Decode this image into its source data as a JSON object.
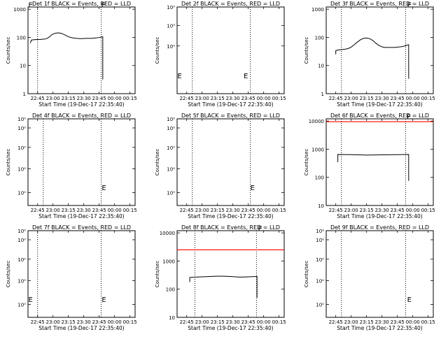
{
  "x_ticks": [
    "22:45",
    "23:00",
    "23:15",
    "23:30",
    "23:45",
    "00:00",
    "00:15"
  ],
  "xlabel": "Start Time (19-Dec-17 22:35:40)",
  "ylabel": "Counts/sec",
  "colors": {
    "events": "#000000",
    "lld": "#ff0000",
    "dotted": "#000000",
    "background": "#ffffff"
  },
  "chart_data": [
    {
      "type": "line",
      "title": "Det 1f BLACK = Events, RED = LLD",
      "x_range": [
        "22:35:40",
        "00:20:00"
      ],
      "ylim": [
        1,
        1200
      ],
      "yscale": "log",
      "ytick_labels": [
        "1",
        "10",
        "100",
        "1000"
      ],
      "ytick_values": [
        1,
        10,
        100,
        1000
      ],
      "vlines": [
        "22:45:00",
        "23:47:00"
      ],
      "markers": [
        {
          "text": "E",
          "x": "22:36:00",
          "y": 1150
        },
        {
          "text": "E",
          "x": "23:47:00",
          "y": 1150
        }
      ],
      "events": {
        "x": [
          "22:38:00",
          "22:39:00",
          "22:41:00",
          "22:44:00",
          "22:47:00",
          "22:50:00",
          "22:53:00",
          "22:56:00",
          "22:59:00",
          "23:02:00",
          "23:05:00",
          "23:08:00",
          "23:11:00",
          "23:14:00",
          "23:17:00",
          "23:20:00",
          "23:23:00",
          "23:26:00",
          "23:29:00",
          "23:32:00",
          "23:35:00",
          "23:38:00",
          "23:41:00",
          "23:44:00",
          "23:46:00",
          "23:48:00",
          "23:48:30",
          "23:48:31"
        ],
        "y": [
          63,
          80,
          82,
          84,
          84,
          86,
          88,
          100,
          125,
          140,
          145,
          140,
          125,
          110,
          100,
          95,
          92,
          90,
          90,
          92,
          92,
          92,
          95,
          98,
          100,
          105,
          105,
          3.2
        ]
      },
      "lld": null
    },
    {
      "type": "line",
      "title": "Det 2f BLACK = Events, RED = LLD",
      "x_range": [
        "22:35:40",
        "00:20:00"
      ],
      "ylim": [
        0.8,
        1.2
      ],
      "yscale": "log",
      "ytick_labels": [
        "10⁰",
        "10⁰",
        "10⁰"
      ],
      "ytick_values": [
        1.0,
        1.1,
        1.2
      ],
      "vlines": [
        "22:50:30",
        "23:47:00"
      ],
      "markers": [
        {
          "text": "E",
          "x": "22:36:00",
          "y": 0.86
        },
        {
          "text": "E",
          "x": "23:40:30",
          "y": 0.86
        }
      ],
      "events": null,
      "lld": null
    },
    {
      "type": "line",
      "title": "Det 3f BLACK = Events, RED = LLD",
      "x_range": [
        "22:35:40",
        "00:20:00"
      ],
      "ylim": [
        1,
        1200
      ],
      "yscale": "log",
      "ytick_labels": [
        "1",
        "10",
        "100",
        "1000"
      ],
      "ytick_values": [
        1,
        10,
        100,
        1000
      ],
      "vlines": [
        "22:50:30",
        "23:53:00"
      ],
      "markers": [
        {
          "text": "E",
          "x": "23:54:30",
          "y": 1150
        }
      ],
      "events": {
        "x": [
          "22:45:00",
          "22:45:01",
          "22:48:00",
          "22:51:00",
          "22:54:00",
          "22:57:00",
          "23:00:00",
          "23:03:00",
          "23:06:00",
          "23:09:00",
          "23:12:00",
          "23:15:00",
          "23:18:00",
          "23:21:00",
          "23:24:00",
          "23:27:00",
          "23:30:00",
          "23:33:00",
          "23:36:00",
          "23:39:00",
          "23:42:00",
          "23:45:00",
          "23:48:00",
          "23:51:00",
          "23:54:00",
          "23:56:00",
          "23:56:01"
        ],
        "y": [
          25,
          34,
          36,
          37,
          38,
          40,
          45,
          55,
          68,
          82,
          92,
          95,
          90,
          78,
          62,
          52,
          46,
          44,
          44,
          44,
          44,
          45,
          46,
          48,
          52,
          55,
          3.4
        ]
      },
      "lld": null
    },
    {
      "type": "line",
      "title": "Det 4f BLACK = Events, RED = LLD",
      "x_range": [
        "22:35:40",
        "00:20:00"
      ],
      "ylim": [
        0.8,
        1.2
      ],
      "yscale": "log",
      "ytick_labels": [
        "10⁰",
        "10⁰",
        "10⁰",
        "10⁰",
        "10⁰"
      ],
      "ytick_values": [
        0.85,
        0.95,
        1.05,
        1.15,
        1.2
      ],
      "vlines": [
        "22:50:30",
        "23:47:00"
      ],
      "markers": [
        {
          "text": "E",
          "x": "23:47:30",
          "y": 0.86
        }
      ],
      "events": null,
      "lld": null
    },
    {
      "type": "line",
      "title": "Det 5f BLACK = Events, RED = LLD",
      "x_range": [
        "22:35:40",
        "00:20:00"
      ],
      "ylim": [
        0.8,
        1.2
      ],
      "yscale": "log",
      "ytick_labels": [
        "10⁰",
        "10⁰",
        "10⁰",
        "10⁰",
        "10⁰"
      ],
      "ytick_values": [
        0.85,
        0.95,
        1.05,
        1.15,
        1.2
      ],
      "vlines": [
        "22:50:30",
        "23:47:00"
      ],
      "markers": [
        {
          "text": "E",
          "x": "23:47:00",
          "y": 0.86
        }
      ],
      "events": null,
      "lld": null
    },
    {
      "type": "line",
      "title": "Det 6f BLACK = Events, RED = LLD",
      "x_range": [
        "22:35:40",
        "00:20:00"
      ],
      "ylim": [
        10,
        12000
      ],
      "yscale": "log",
      "ytick_labels": [
        "10",
        "100",
        "1000",
        "10000"
      ],
      "ytick_values": [
        10,
        100,
        1000,
        10000
      ],
      "vlines": [
        "22:50:30",
        "23:53:00"
      ],
      "markers": [
        {
          "text": "E",
          "x": "23:54:00",
          "y": 11500
        }
      ],
      "events": {
        "x": [
          "22:47:00",
          "22:47:01",
          "23:00:00",
          "23:15:00",
          "23:30:00",
          "23:45:00",
          "23:56:00",
          "23:56:01"
        ],
        "y": [
          350,
          650,
          640,
          620,
          630,
          640,
          650,
          75
        ]
      },
      "lld": {
        "x": [
          "22:35:40",
          "00:20:00"
        ],
        "y": [
          9500,
          9500
        ]
      }
    },
    {
      "type": "line",
      "title": "Det 7f BLACK = Events, RED = LLD",
      "x_range": [
        "22:35:40",
        "00:20:00"
      ],
      "ylim": [
        0.8,
        1.2
      ],
      "yscale": "log",
      "ytick_labels": [
        "10⁰",
        "10⁰",
        "10⁰",
        "10⁰",
        "10⁰"
      ],
      "ytick_values": [
        0.85,
        0.95,
        1.05,
        1.15,
        1.2
      ],
      "vlines": [
        "22:45:00",
        "23:47:00"
      ],
      "markers": [
        {
          "text": "E",
          "x": "22:36:00",
          "y": 0.86
        },
        {
          "text": "E",
          "x": "23:47:30",
          "y": 0.86
        }
      ],
      "events": null,
      "lld": null
    },
    {
      "type": "line",
      "title": "Det 8f BLACK = Events, RED = LLD",
      "x_range": [
        "22:35:40",
        "00:20:00"
      ],
      "ylim": [
        10,
        12000
      ],
      "yscale": "log",
      "ytick_labels": [
        "10",
        "100",
        "1000",
        "10000"
      ],
      "ytick_values": [
        10,
        100,
        1000,
        10000
      ],
      "vlines": [
        "22:53:00",
        "23:53:00"
      ],
      "markers": [
        {
          "text": "E",
          "x": "23:54:30",
          "y": 11500
        }
      ],
      "events": {
        "x": [
          "22:48:00",
          "22:48:01",
          "22:55:00",
          "23:00:00",
          "23:05:00",
          "23:10:00",
          "23:15:00",
          "23:20:00",
          "23:25:00",
          "23:30:00",
          "23:35:00",
          "23:40:00",
          "23:45:00",
          "23:50:00",
          "23:53:30",
          "23:53:31"
        ],
        "y": [
          180,
          260,
          270,
          275,
          280,
          285,
          290,
          290,
          285,
          280,
          270,
          270,
          275,
          280,
          285,
          50
        ]
      },
      "lld": {
        "x": [
          "22:35:40",
          "00:20:00"
        ],
        "y": [
          2500,
          2500
        ]
      }
    },
    {
      "type": "line",
      "title": "Det 9f BLACK = Events, RED = LLD",
      "x_range": [
        "22:35:40",
        "00:20:00"
      ],
      "ylim": [
        0.8,
        1.2
      ],
      "yscale": "log",
      "ytick_labels": [
        "10⁰",
        "10⁰",
        "10⁰",
        "10⁰",
        "10⁰"
      ],
      "ytick_values": [
        0.85,
        0.95,
        1.05,
        1.15,
        1.2
      ],
      "vlines": [
        "22:50:30",
        "23:53:00"
      ],
      "markers": [
        {
          "text": "E",
          "x": "23:54:30",
          "y": 0.86
        }
      ],
      "events": null,
      "lld": null
    }
  ]
}
